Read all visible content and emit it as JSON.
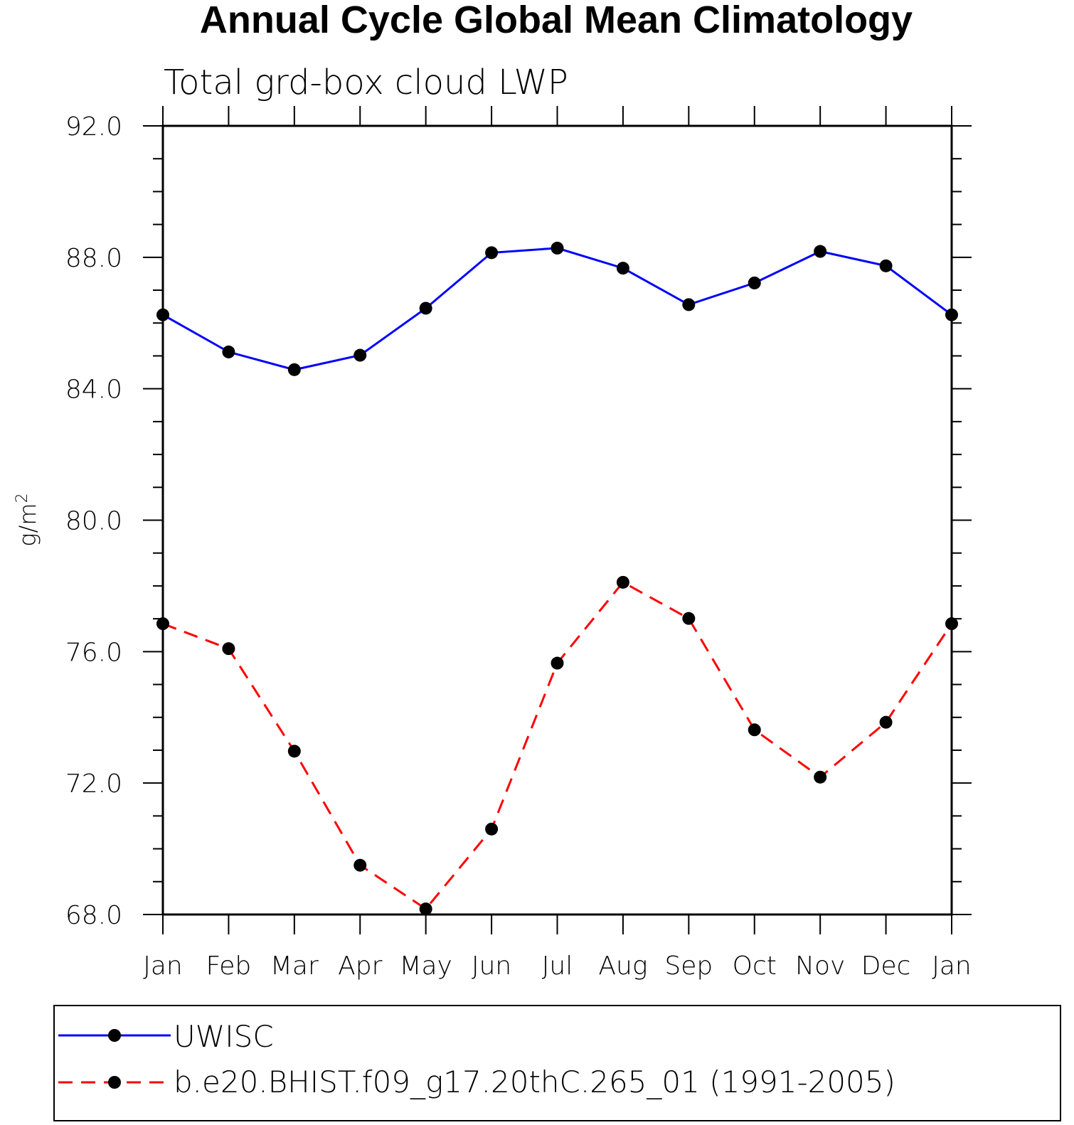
{
  "chart_data": {
    "type": "line",
    "title": "Annual Cycle Global Mean Climatology",
    "subtitle": "Total grd-box cloud LWP",
    "ylabel": "g/m",
    "ylabel_superscript": "2",
    "xlabel": "",
    "categories": [
      "Jan",
      "Feb",
      "Mar",
      "Apr",
      "May",
      "Jun",
      "Jul",
      "Aug",
      "Sep",
      "Oct",
      "Nov",
      "Dec",
      "Jan"
    ],
    "ylim": [
      68,
      92
    ],
    "yticks": [
      "68.0",
      "72.0",
      "76.0",
      "80.0",
      "84.0",
      "88.0",
      "92.0"
    ],
    "series": [
      {
        "name": "UWISC",
        "color": "#0000ff",
        "style": "solid",
        "values": [
          86.25,
          85.12,
          84.58,
          85.02,
          86.45,
          88.14,
          88.28,
          87.67,
          86.56,
          87.22,
          88.18,
          87.74,
          86.25
        ]
      },
      {
        "name": "b.e20.BHIST.f09_g17.20thC.265_01 (1991-2005)",
        "color": "#ff0000",
        "style": "dashed",
        "values": [
          76.85,
          76.09,
          72.97,
          69.5,
          68.17,
          70.6,
          75.65,
          78.11,
          77.01,
          73.62,
          72.18,
          73.85,
          76.85
        ]
      }
    ],
    "marker_color": "#000000",
    "legend_position": "bottom"
  }
}
